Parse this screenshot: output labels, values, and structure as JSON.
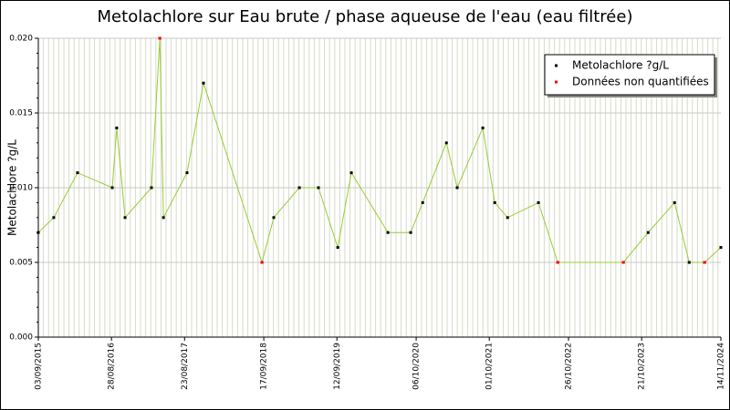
{
  "chart_data": {
    "type": "line",
    "title": "Metolachlore sur Eau brute / phase aqueuse de l'eau (eau filtrée)",
    "y_label": "Metolachlore ?g/L",
    "x": [
      "03/09/2015",
      "18/11/2015",
      "14/03/2016",
      "01/09/2016",
      "23/09/2016",
      "03/11/2016",
      "13/03/2017",
      "23/04/2017",
      "11/05/2017",
      "04/09/2017",
      "24/11/2017",
      "08/09/2018",
      "05/11/2018",
      "11/03/2019",
      "13/06/2019",
      "16/09/2019",
      "22/11/2019",
      "20/05/2020",
      "09/09/2020",
      "07/11/2020",
      "04/03/2021",
      "26/04/2021",
      "30/08/2021",
      "28/10/2021",
      "30/12/2021",
      "31/05/2022",
      "03/09/2022",
      "23/07/2023",
      "22/11/2023",
      "31/03/2024",
      "11/06/2024",
      "26/08/2024",
      "14/11/2024"
    ],
    "series": [
      {
        "name": "Metolachlore ?g/L",
        "color": "#000000",
        "line_color": "#99cc33",
        "values": [
          0.007,
          0.008,
          0.011,
          0.01,
          0.014,
          0.008,
          0.01,
          0.02,
          0.008,
          0.011,
          0.017,
          0.005,
          0.008,
          0.01,
          0.01,
          0.006,
          0.011,
          0.007,
          0.007,
          0.009,
          0.013,
          0.01,
          0.014,
          0.009,
          0.008,
          0.009,
          0.005,
          0.005,
          0.007,
          0.009,
          0.005,
          0.005,
          0.006
        ]
      },
      {
        "name": "Données non quantifiées",
        "color": "#ff0000",
        "values": [
          null,
          null,
          null,
          null,
          null,
          null,
          null,
          0.02,
          null,
          null,
          null,
          0.005,
          null,
          null,
          null,
          null,
          null,
          null,
          null,
          null,
          null,
          null,
          null,
          null,
          null,
          null,
          0.005,
          0.005,
          null,
          null,
          null,
          0.005,
          null
        ]
      }
    ],
    "xlim": [
      "03/09/2015",
      "14/11/2024"
    ],
    "xticks": [
      "03/09/2015",
      "28/08/2016",
      "23/08/2017",
      "17/09/2018",
      "12/09/2019",
      "06/10/2020",
      "01/10/2021",
      "26/10/2022",
      "21/10/2023",
      "14/11/2024"
    ],
    "ylim": [
      0,
      0.02
    ],
    "yticks": [
      {
        "value": 0,
        "label": "0.000"
      },
      {
        "value": 0.005,
        "label": "0.005"
      },
      {
        "value": 0.01,
        "label": "0.010"
      },
      {
        "value": 0.015,
        "label": "0.015"
      },
      {
        "value": 0.02,
        "label": "0.020"
      }
    ],
    "grid": true,
    "legend": "top-right"
  }
}
